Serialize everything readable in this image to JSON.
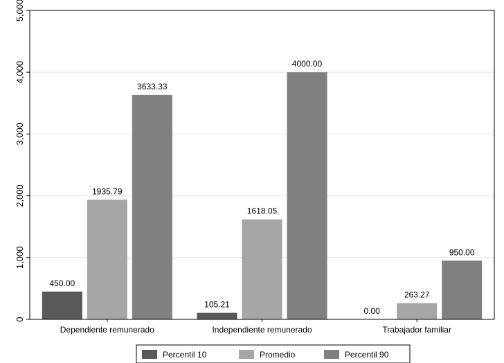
{
  "chart_data": {
    "type": "bar",
    "categories": [
      "Dependiente remunerado",
      "Independiente remunerado",
      "Trabajador familiar"
    ],
    "series": [
      {
        "name": "Percentil 10",
        "values": [
          450.0,
          105.21,
          0.0
        ],
        "labels": [
          "450.00",
          "105.21",
          "0.00"
        ],
        "color": "#595959"
      },
      {
        "name": "Promedio",
        "values": [
          1935.79,
          1618.05,
          263.27
        ],
        "labels": [
          "1935.79",
          "1618.05",
          "263.27"
        ],
        "color": "#a6a6a6"
      },
      {
        "name": "Percentil 90",
        "values": [
          3633.33,
          4000.0,
          950.0
        ],
        "labels": [
          "3633.33",
          "4000.00",
          "950.00"
        ],
        "color": "#808080"
      }
    ],
    "ylim": [
      0,
      5000
    ],
    "yticks": [
      0,
      1000,
      2000,
      3000,
      4000,
      5000
    ],
    "ytick_labels": [
      "0",
      "1,000",
      "2,000",
      "3,000",
      "4,000",
      "5,000"
    ],
    "grid": true,
    "legend_position": "bottom"
  }
}
